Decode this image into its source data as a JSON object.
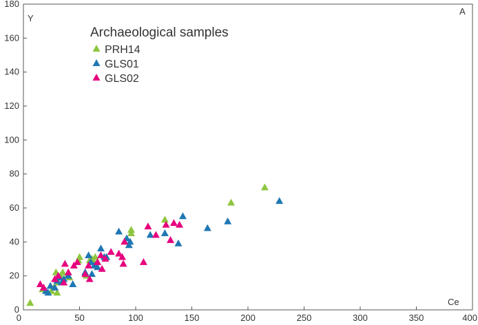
{
  "chart_data": {
    "type": "scatter",
    "xlabel": "Ce",
    "ylabel": "Y",
    "corner_label": "A",
    "xlim": [
      0,
      400
    ],
    "ylim": [
      0,
      180
    ],
    "x_ticks": [
      0,
      50,
      100,
      150,
      200,
      250,
      300,
      350,
      400
    ],
    "y_ticks": [
      0,
      20,
      40,
      60,
      80,
      100,
      120,
      140,
      160,
      180
    ],
    "grid": false,
    "legend_title": "Archaeological samples",
    "legend_position": "top-left",
    "series": [
      {
        "name": "PRH14",
        "color": "#8dc63f",
        "marker": "triangle",
        "points": [
          [
            6,
            4
          ],
          [
            17,
            12
          ],
          [
            25,
            11
          ],
          [
            27,
            13
          ],
          [
            28,
            18
          ],
          [
            29,
            22
          ],
          [
            30,
            10
          ],
          [
            31,
            16
          ],
          [
            33,
            20
          ],
          [
            35,
            22
          ],
          [
            39,
            20
          ],
          [
            41,
            19
          ],
          [
            49,
            29
          ],
          [
            50,
            31
          ],
          [
            56,
            20
          ],
          [
            59,
            29
          ],
          [
            61,
            30
          ],
          [
            63,
            28
          ],
          [
            64,
            31
          ],
          [
            96,
            47
          ],
          [
            96,
            45
          ],
          [
            126,
            53
          ],
          [
            185,
            63
          ],
          [
            215,
            72
          ]
        ]
      },
      {
        "name": "GLS01",
        "color": "#1f77b4",
        "marker": "triangle",
        "points": [
          [
            20,
            11
          ],
          [
            22,
            10
          ],
          [
            24,
            14
          ],
          [
            28,
            13
          ],
          [
            30,
            17
          ],
          [
            32,
            19
          ],
          [
            34,
            16
          ],
          [
            36,
            18
          ],
          [
            40,
            20
          ],
          [
            44,
            15
          ],
          [
            55,
            22
          ],
          [
            58,
            32
          ],
          [
            60,
            28
          ],
          [
            61,
            21
          ],
          [
            63,
            26
          ],
          [
            66,
            25
          ],
          [
            69,
            36
          ],
          [
            72,
            31
          ],
          [
            74,
            31
          ],
          [
            85,
            46
          ],
          [
            92,
            42
          ],
          [
            94,
            38
          ],
          [
            95,
            40
          ],
          [
            113,
            44
          ],
          [
            126,
            45
          ],
          [
            138,
            39
          ],
          [
            142,
            55
          ],
          [
            164,
            48
          ],
          [
            182,
            52
          ],
          [
            228,
            64
          ]
        ]
      },
      {
        "name": "GLS02",
        "color": "#e6007e",
        "marker": "triangle",
        "points": [
          [
            15,
            15
          ],
          [
            18,
            13
          ],
          [
            28,
            18
          ],
          [
            31,
            20
          ],
          [
            36,
            16
          ],
          [
            37,
            27
          ],
          [
            40,
            22
          ],
          [
            45,
            26
          ],
          [
            48,
            28
          ],
          [
            55,
            21
          ],
          [
            58,
            26
          ],
          [
            59,
            18
          ],
          [
            66,
            28
          ],
          [
            69,
            32
          ],
          [
            70,
            24
          ],
          [
            73,
            30
          ],
          [
            78,
            34
          ],
          [
            85,
            33
          ],
          [
            88,
            31
          ],
          [
            89,
            27
          ],
          [
            90,
            40
          ],
          [
            107,
            28
          ],
          [
            111,
            49
          ],
          [
            118,
            44
          ],
          [
            127,
            50
          ],
          [
            131,
            41
          ],
          [
            134,
            51
          ],
          [
            139,
            50
          ]
        ]
      }
    ]
  }
}
